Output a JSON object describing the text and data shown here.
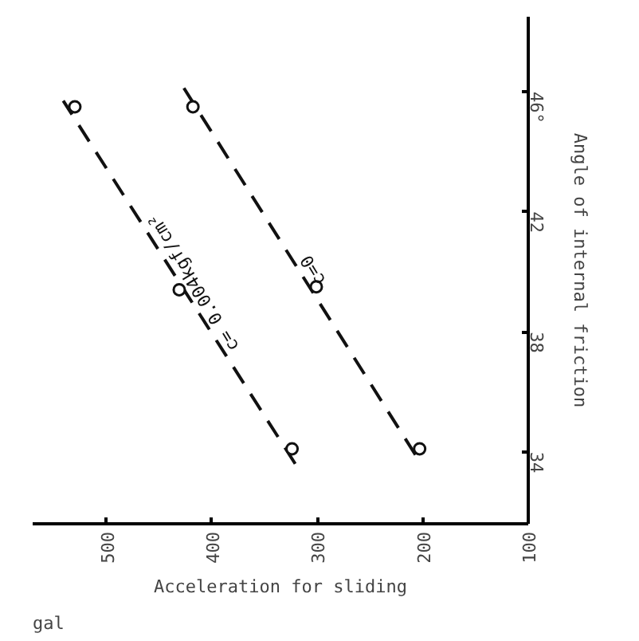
{
  "chart_data": {
    "type": "line",
    "xlabel": "Acceleration for sliding",
    "ylabel": "Angle of internal friction",
    "annotations": [
      "gal"
    ],
    "xlim": [
      570,
      100
    ],
    "ylim": [
      31.6,
      48.5
    ],
    "xticks": [
      500,
      400,
      300,
      200,
      100
    ],
    "yticks": [
      34,
      38,
      42,
      {
        "value": 46,
        "label": "46°"
      }
    ],
    "series": [
      {
        "name": "c= 0.004kgf/cm²",
        "color": "#111111",
        "type": "line",
        "line_style": "dashed",
        "marker": "none",
        "x": [
          321,
          541
        ],
        "values": [
          33.6,
          45.7
        ]
      },
      {
        "name": "c=0",
        "color": "#111111",
        "type": "line",
        "line_style": "dashed",
        "marker": "none",
        "x": [
          207,
          428
        ],
        "values": [
          33.9,
          46.2
        ]
      },
      {
        "color": "#111111",
        "type": "scatter",
        "marker": "circle",
        "x": [
          324,
          431,
          530
        ],
        "values": [
          34.1,
          39.4,
          45.5
        ]
      },
      {
        "color": "#111111",
        "type": "scatter",
        "marker": "circle",
        "x": [
          203,
          301,
          418
        ],
        "values": [
          34.1,
          39.5,
          45.5
        ]
      }
    ],
    "grid": false,
    "legend": false
  }
}
